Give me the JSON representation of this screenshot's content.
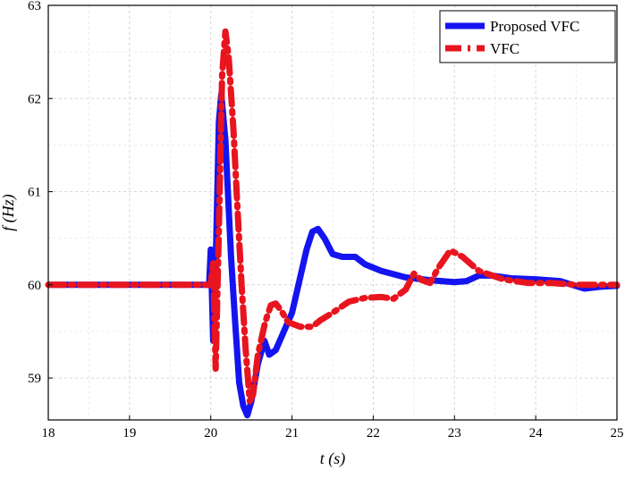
{
  "chart_data": {
    "type": "line",
    "xlabel": "t (s)",
    "ylabel": "f (Hz)",
    "xlim": [
      18,
      25
    ],
    "ylim": [
      58.55,
      63
    ],
    "x_ticks": [
      18,
      19,
      20,
      21,
      22,
      23,
      24,
      25
    ],
    "y_ticks": [
      59,
      60,
      61,
      62,
      63
    ],
    "grid": true,
    "legend": "top-right",
    "series": [
      {
        "name": "Proposed VFC",
        "color": "#1414f0",
        "style": "solid",
        "points": [
          [
            18,
            60.0
          ],
          [
            19.98,
            60.0
          ],
          [
            20.0,
            60.38
          ],
          [
            20.03,
            59.4
          ],
          [
            20.06,
            60.2
          ],
          [
            20.1,
            61.75
          ],
          [
            20.13,
            62.05
          ],
          [
            20.18,
            61.55
          ],
          [
            20.25,
            60.3
          ],
          [
            20.3,
            59.6
          ],
          [
            20.35,
            58.95
          ],
          [
            20.4,
            58.7
          ],
          [
            20.45,
            58.6
          ],
          [
            20.5,
            58.75
          ],
          [
            20.58,
            59.15
          ],
          [
            20.66,
            59.4
          ],
          [
            20.72,
            59.25
          ],
          [
            20.8,
            59.3
          ],
          [
            20.9,
            59.5
          ],
          [
            21.0,
            59.7
          ],
          [
            21.08,
            60.0
          ],
          [
            21.18,
            60.38
          ],
          [
            21.25,
            60.57
          ],
          [
            21.32,
            60.6
          ],
          [
            21.4,
            60.5
          ],
          [
            21.5,
            60.33
          ],
          [
            21.62,
            60.3
          ],
          [
            21.78,
            60.3
          ],
          [
            21.9,
            60.22
          ],
          [
            22.1,
            60.15
          ],
          [
            22.4,
            60.08
          ],
          [
            22.7,
            60.05
          ],
          [
            23.0,
            60.03
          ],
          [
            23.15,
            60.04
          ],
          [
            23.3,
            60.1
          ],
          [
            23.45,
            60.1
          ],
          [
            23.7,
            60.07
          ],
          [
            24.0,
            60.06
          ],
          [
            24.3,
            60.04
          ],
          [
            24.45,
            60.0
          ],
          [
            24.6,
            59.96
          ],
          [
            24.8,
            59.98
          ],
          [
            25.0,
            59.99
          ]
        ]
      },
      {
        "name": "VFC",
        "color": "#e8141e",
        "style": "dashdot",
        "points": [
          [
            18,
            60.0
          ],
          [
            20.0,
            60.0
          ],
          [
            20.03,
            60.25
          ],
          [
            20.06,
            59.1
          ],
          [
            20.1,
            60.6
          ],
          [
            20.14,
            62.25
          ],
          [
            20.18,
            62.72
          ],
          [
            20.22,
            62.45
          ],
          [
            20.28,
            61.65
          ],
          [
            20.33,
            60.8
          ],
          [
            20.38,
            60.0
          ],
          [
            20.43,
            59.3
          ],
          [
            20.48,
            58.75
          ],
          [
            20.52,
            58.82
          ],
          [
            20.58,
            59.25
          ],
          [
            20.67,
            59.6
          ],
          [
            20.74,
            59.78
          ],
          [
            20.8,
            59.8
          ],
          [
            20.87,
            59.72
          ],
          [
            20.95,
            59.6
          ],
          [
            21.1,
            59.55
          ],
          [
            21.25,
            59.55
          ],
          [
            21.35,
            59.62
          ],
          [
            21.5,
            59.7
          ],
          [
            21.7,
            59.82
          ],
          [
            21.9,
            59.86
          ],
          [
            22.1,
            59.87
          ],
          [
            22.25,
            59.85
          ],
          [
            22.4,
            59.95
          ],
          [
            22.5,
            60.12
          ],
          [
            22.6,
            60.05
          ],
          [
            22.7,
            60.02
          ],
          [
            22.8,
            60.18
          ],
          [
            22.95,
            60.37
          ],
          [
            23.1,
            60.3
          ],
          [
            23.3,
            60.15
          ],
          [
            23.6,
            60.06
          ],
          [
            23.9,
            60.02
          ],
          [
            24.2,
            60.02
          ],
          [
            24.5,
            60.0
          ],
          [
            25.0,
            60.0
          ]
        ]
      }
    ]
  }
}
